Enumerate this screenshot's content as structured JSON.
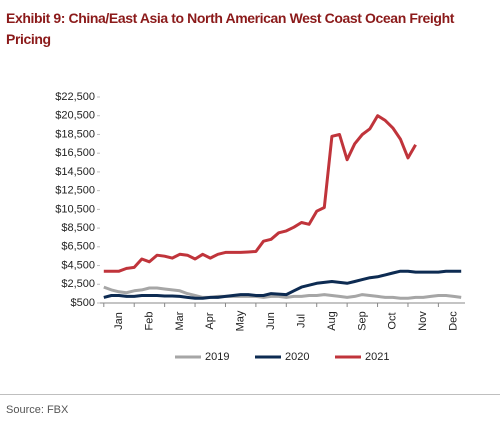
{
  "chart_data": {
    "type": "line",
    "title": "Exhibit 9: China/East Asia to North American West Coast Ocean Freight Pricing",
    "source": "Source: FBX",
    "categories": [
      null,
      null,
      "Jan",
      null,
      null,
      null,
      "Feb",
      null,
      null,
      null,
      "Mar",
      null,
      null,
      null,
      "Apr",
      null,
      null,
      null,
      "May",
      null,
      null,
      null,
      "Jun",
      null,
      null,
      null,
      "Jul",
      null,
      null,
      null,
      "Aug",
      null,
      null,
      null,
      "Sep",
      null,
      null,
      null,
      "Oct",
      null,
      null,
      null,
      "Nov",
      null,
      null,
      null,
      "Dec",
      null
    ],
    "ylim": [
      500,
      22500
    ],
    "yticks": [
      {
        "value": 500,
        "label": "$500"
      },
      {
        "value": 2500,
        "label": "$2,500"
      },
      {
        "value": 4500,
        "label": "$4,500"
      },
      {
        "value": 6500,
        "label": "$6,500"
      },
      {
        "value": 8500,
        "label": "$8,500"
      },
      {
        "value": 10500,
        "label": "$10,500"
      },
      {
        "value": 12500,
        "label": "$12,500"
      },
      {
        "value": 14500,
        "label": "$14,500"
      },
      {
        "value": 16500,
        "label": "$16,500"
      },
      {
        "value": 18500,
        "label": "$18,500"
      },
      {
        "value": 20500,
        "label": "$20,500"
      },
      {
        "value": 22500,
        "label": "$22,500"
      }
    ],
    "legend": "bottom",
    "series": [
      {
        "name": "2019",
        "color": "#a6a6a6",
        "values": [
          2200,
          1900,
          1700,
          1600,
          1800,
          1900,
          2100,
          2100,
          2000,
          1900,
          1800,
          1500,
          1300,
          1100,
          1100,
          1200,
          1200,
          1200,
          1200,
          1200,
          1200,
          1100,
          1200,
          1200,
          1100,
          1200,
          1200,
          1300,
          1300,
          1400,
          1300,
          1200,
          1100,
          1200,
          1400,
          1300,
          1200,
          1100,
          1100,
          1000,
          1000,
          1100,
          1100,
          1200,
          1300,
          1300,
          1200,
          1100
        ]
      },
      {
        "name": "2020",
        "color": "#0d2b52",
        "values": [
          1100,
          1300,
          1300,
          1200,
          1200,
          1300,
          1300,
          1300,
          1250,
          1250,
          1200,
          1100,
          1000,
          1000,
          1100,
          1100,
          1200,
          1300,
          1400,
          1400,
          1300,
          1300,
          1500,
          1450,
          1400,
          1800,
          2200,
          2400,
          2600,
          2700,
          2800,
          2700,
          2600,
          2800,
          3000,
          3200,
          3300,
          3500,
          3700,
          3900,
          3900,
          3800,
          3800,
          3800,
          3800,
          3900,
          3900,
          3900
        ]
      },
      {
        "name": "2021",
        "color": "#c0343b",
        "values": [
          3900,
          3900,
          3900,
          4200,
          4300,
          5200,
          4900,
          5600,
          5500,
          5300,
          5700,
          5600,
          5200,
          5700,
          5300,
          5700,
          5900,
          5900,
          5900,
          5950,
          6000,
          7100,
          7300,
          8000,
          8200,
          8600,
          9100,
          8900,
          10300,
          10700,
          18300,
          18500,
          15800,
          17500,
          18500,
          19100,
          20500,
          20000,
          19200,
          18000,
          16000,
          17400,
          null,
          null,
          null,
          null,
          null,
          null
        ]
      }
    ]
  }
}
